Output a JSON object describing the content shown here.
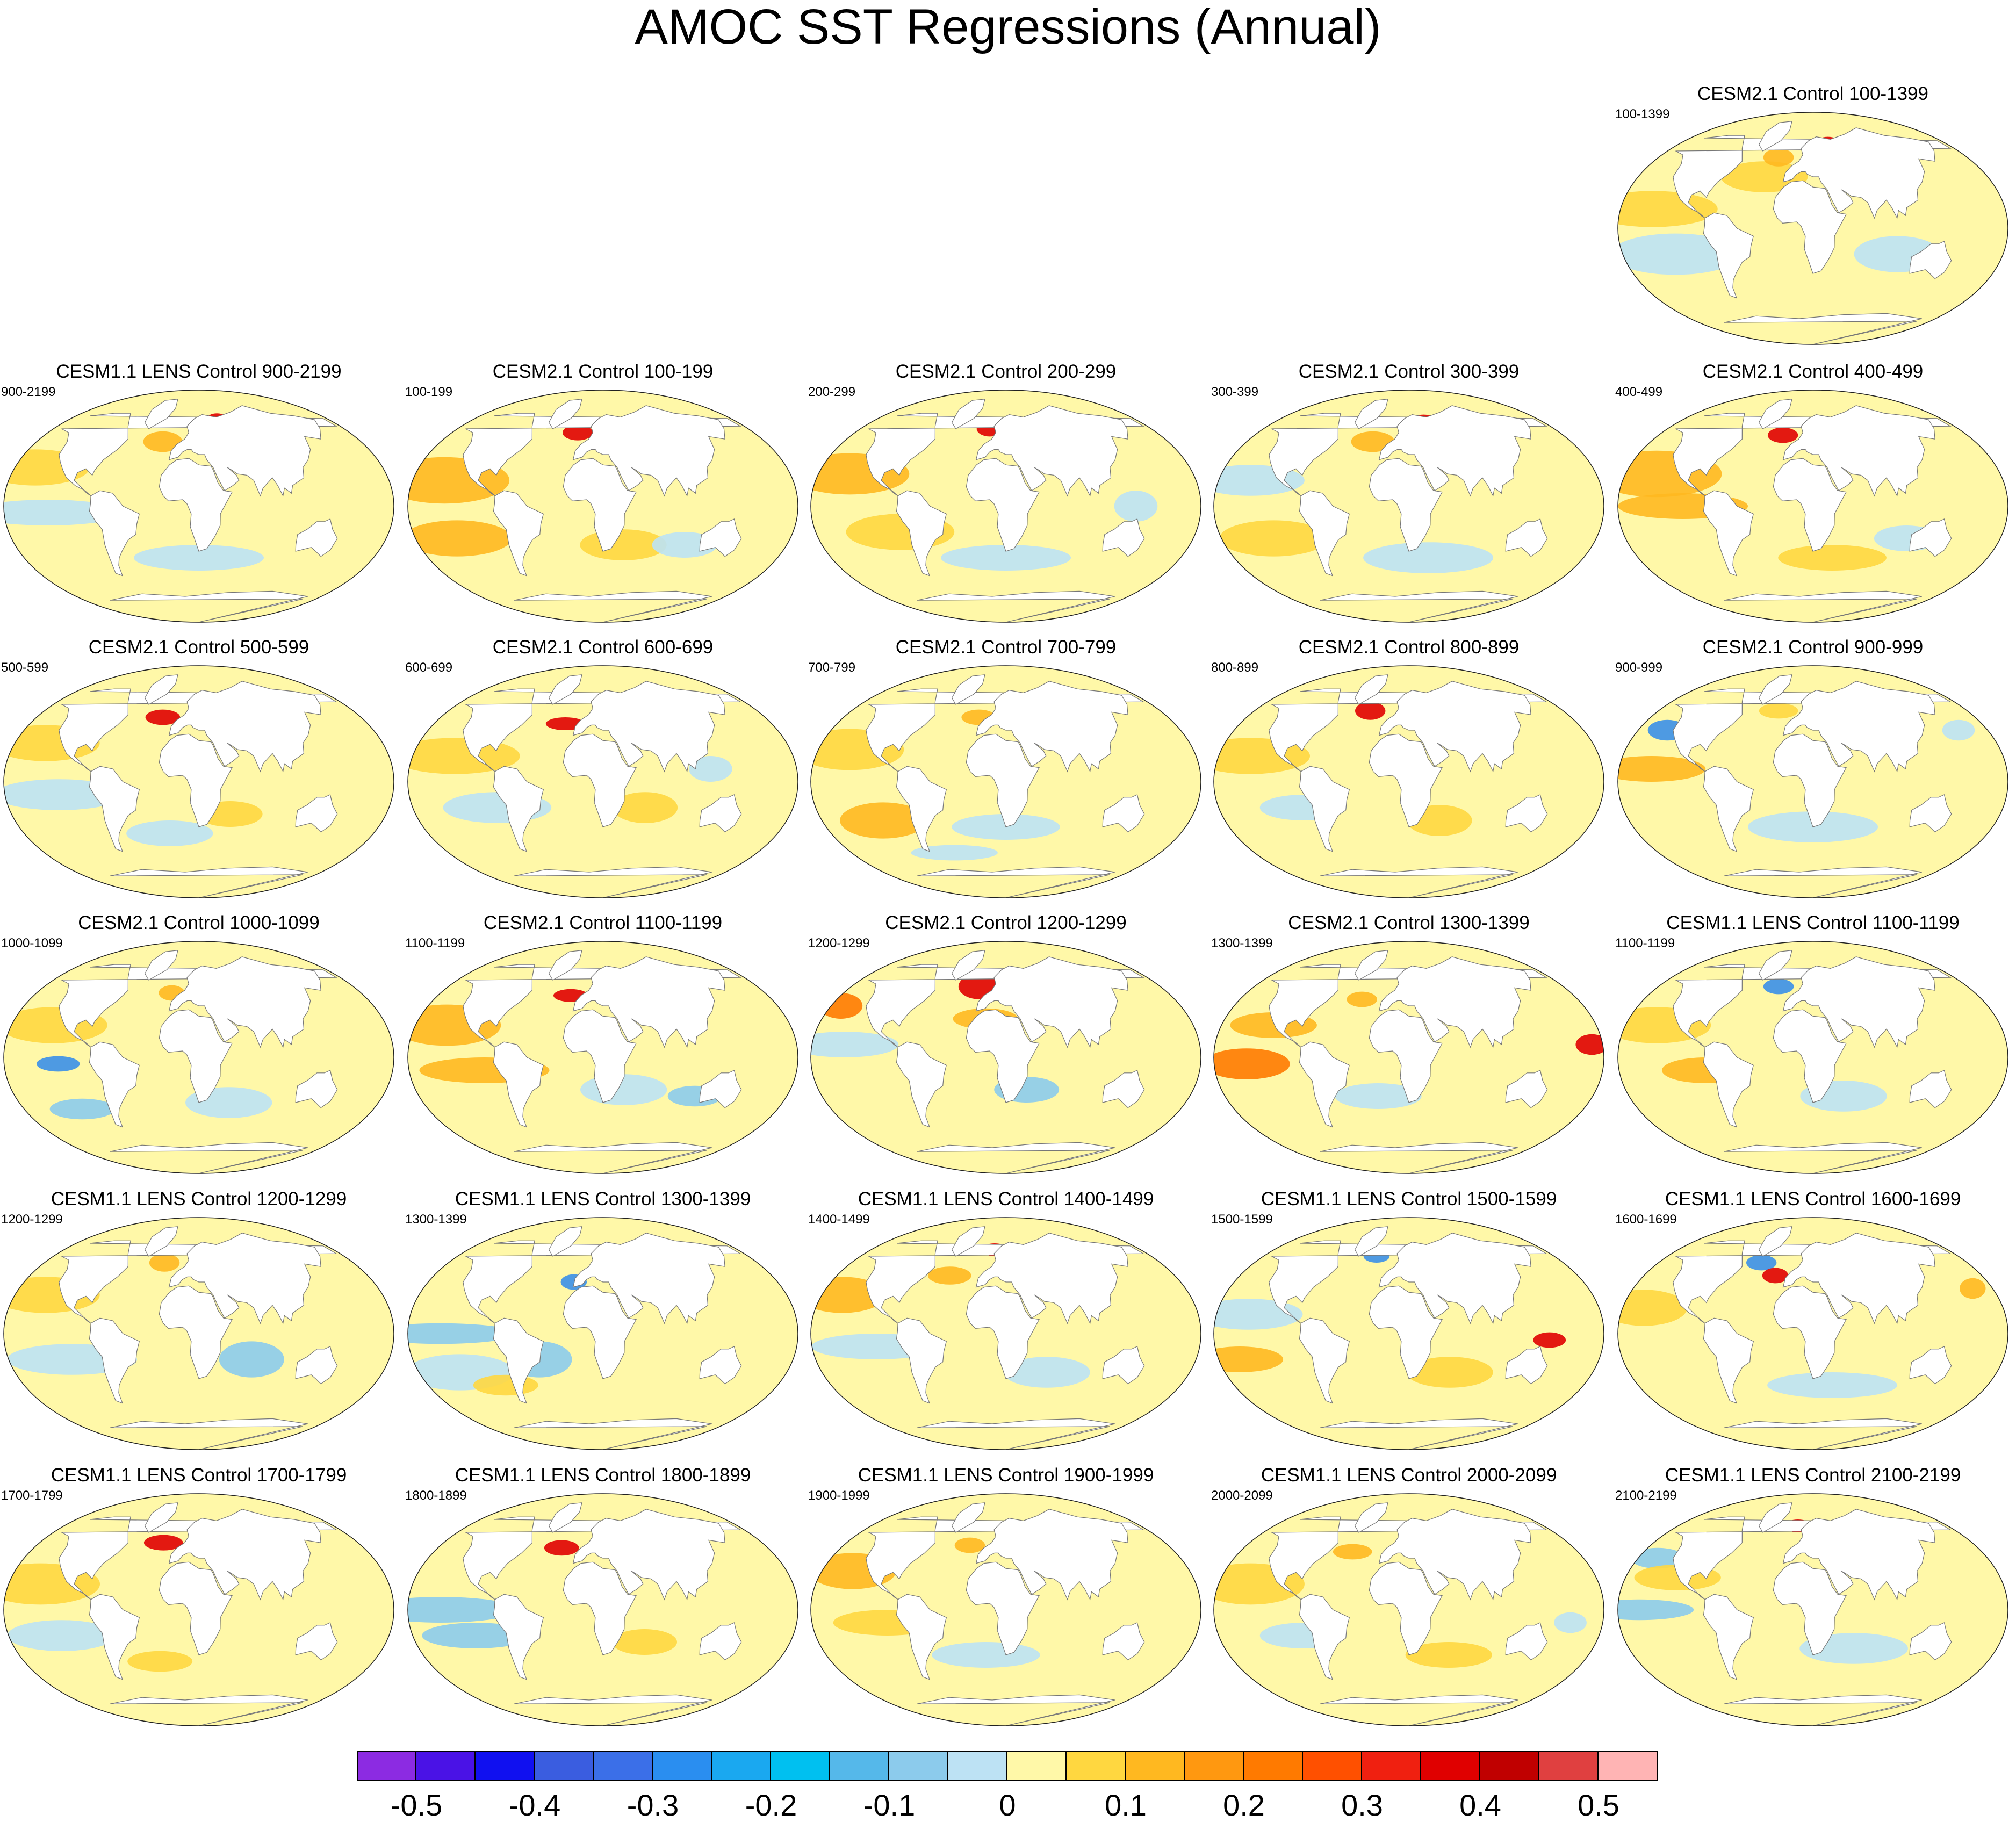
{
  "title": "AMOC SST Regressions (Annual)",
  "panels": [
    {
      "title": "CESM2.1 Control 100-1399",
      "label": "100-1399",
      "row": 0,
      "col": 4
    },
    {
      "title": "CESM1.1 LENS Control 900-2199",
      "label": "900-2199",
      "row": 1,
      "col": 0
    },
    {
      "title": "CESM2.1 Control 100-199",
      "label": "100-199",
      "row": 1,
      "col": 1
    },
    {
      "title": "CESM2.1 Control 200-299",
      "label": "200-299",
      "row": 1,
      "col": 2
    },
    {
      "title": "CESM2.1 Control 300-399",
      "label": "300-399",
      "row": 1,
      "col": 3
    },
    {
      "title": "CESM2.1 Control 400-499",
      "label": "400-499",
      "row": 1,
      "col": 4
    },
    {
      "title": "CESM2.1 Control 500-599",
      "label": "500-599",
      "row": 2,
      "col": 0
    },
    {
      "title": "CESM2.1 Control 600-699",
      "label": "600-699",
      "row": 2,
      "col": 1
    },
    {
      "title": "CESM2.1 Control 700-799",
      "label": "700-799",
      "row": 2,
      "col": 2
    },
    {
      "title": "CESM2.1 Control 800-899",
      "label": "800-899",
      "row": 2,
      "col": 3
    },
    {
      "title": "CESM2.1 Control 900-999",
      "label": "900-999",
      "row": 2,
      "col": 4
    },
    {
      "title": "CESM2.1 Control 1000-1099",
      "label": "1000-1099",
      "row": 3,
      "col": 0
    },
    {
      "title": "CESM2.1 Control 1100-1199",
      "label": "1100-1199",
      "row": 3,
      "col": 1
    },
    {
      "title": "CESM2.1 Control 1200-1299",
      "label": "1200-1299",
      "row": 3,
      "col": 2
    },
    {
      "title": "CESM2.1 Control 1300-1399",
      "label": "1300-1399",
      "row": 3,
      "col": 3
    },
    {
      "title": "CESM1.1 LENS Control 1100-1199",
      "label": "1100-1199",
      "row": 3,
      "col": 4
    },
    {
      "title": "CESM1.1 LENS Control 1200-1299",
      "label": "1200-1299",
      "row": 4,
      "col": 0
    },
    {
      "title": "CESM1.1 LENS Control 1300-1399",
      "label": "1300-1399",
      "row": 4,
      "col": 1
    },
    {
      "title": "CESM1.1 LENS Control 1400-1499",
      "label": "1400-1499",
      "row": 4,
      "col": 2
    },
    {
      "title": "CESM1.1 LENS Control 1500-1599",
      "label": "1500-1599",
      "row": 4,
      "col": 3
    },
    {
      "title": "CESM1.1 LENS Control 1600-1699",
      "label": "1600-1699",
      "row": 4,
      "col": 4
    },
    {
      "title": "CESM1.1 LENS Control 1700-1799",
      "label": "1700-1799",
      "row": 5,
      "col": 0
    },
    {
      "title": "CESM1.1 LENS Control 1800-1899",
      "label": "1800-1899",
      "row": 5,
      "col": 1
    },
    {
      "title": "CESM1.1 LENS Control 1900-1999",
      "label": "1900-1999",
      "row": 5,
      "col": 2
    },
    {
      "title": "CESM1.1 LENS Control 2000-2099",
      "label": "2000-2099",
      "row": 5,
      "col": 3
    },
    {
      "title": "CESM1.1 LENS Control 2100-2199",
      "label": "2100-2199",
      "row": 5,
      "col": 4
    }
  ],
  "colorbar": {
    "colors": [
      "#8c2be2",
      "#4a12e6",
      "#1010f0",
      "#3a5de0",
      "#3b6fe8",
      "#2a8ef0",
      "#1aa8f0",
      "#00c0f0",
      "#55b8ea",
      "#8ccbec",
      "#bde2f4",
      "#fff8a8",
      "#ffd740",
      "#ffb820",
      "#ff9810",
      "#ff7a00",
      "#ff5000",
      "#f02010",
      "#e00000",
      "#c00000",
      "#e04040",
      "#ffb4b4"
    ],
    "tick_labels": [
      "-0.5",
      "-0.4",
      "-0.3",
      "-0.2",
      "-0.1",
      "0",
      "0.1",
      "0.2",
      "0.3",
      "0.4",
      "0.5"
    ]
  },
  "map_colors": {
    "ocean_base": "#fff8a8",
    "warm_1": "#ffd740",
    "warm_2": "#ffb820",
    "warm_3": "#ff7a00",
    "hot": "#e00000",
    "cool_1": "#bde2f4",
    "cool_2": "#8ccbec",
    "cool_3": "#3b8fe8",
    "land": "#ffffff"
  }
}
